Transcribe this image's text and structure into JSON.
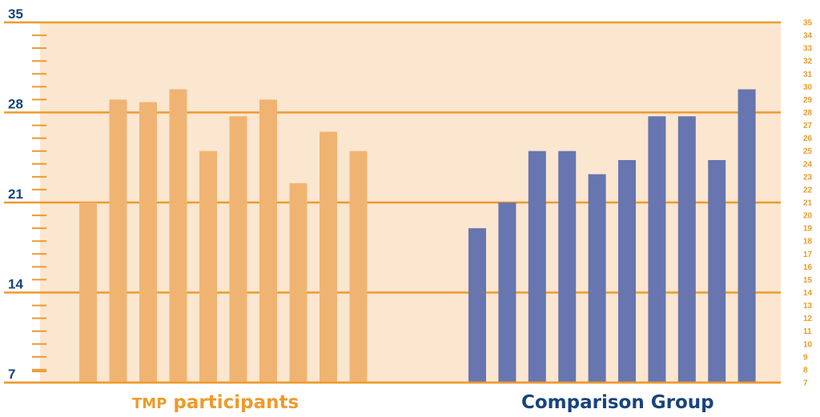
{
  "chart_data": {
    "type": "bar",
    "ylim": [
      7,
      35
    ],
    "left_ticks": [
      "7",
      "14",
      "21",
      "28",
      "35"
    ],
    "right_ticks": [
      "7",
      "8",
      "9",
      "10",
      "11",
      "12",
      "13",
      "14",
      "15",
      "16",
      "17",
      "18",
      "19",
      "20",
      "21",
      "22",
      "23",
      "24",
      "25",
      "26",
      "27",
      "28",
      "29",
      "30",
      "31",
      "32",
      "33",
      "34",
      "35"
    ],
    "series": [
      {
        "name_prefix": "TMP",
        "name_rest": "participants",
        "values": [
          21,
          29,
          28.8,
          29.8,
          25,
          27.7,
          29,
          22.5,
          26.5,
          25
        ]
      },
      {
        "name": "Comparison Group",
        "values": [
          19,
          21,
          25,
          25,
          23.2,
          24.3,
          27.7,
          27.7,
          24.3,
          29.8
        ]
      }
    ],
    "colors": {
      "background": "#fbe6d0",
      "gridline": "#ee9a2b",
      "tmp_bar": "#f0b472",
      "comparison_bar": "#6776b0",
      "left_tick_text": "#18447c",
      "right_tick_text": "#ee9a2b"
    }
  }
}
